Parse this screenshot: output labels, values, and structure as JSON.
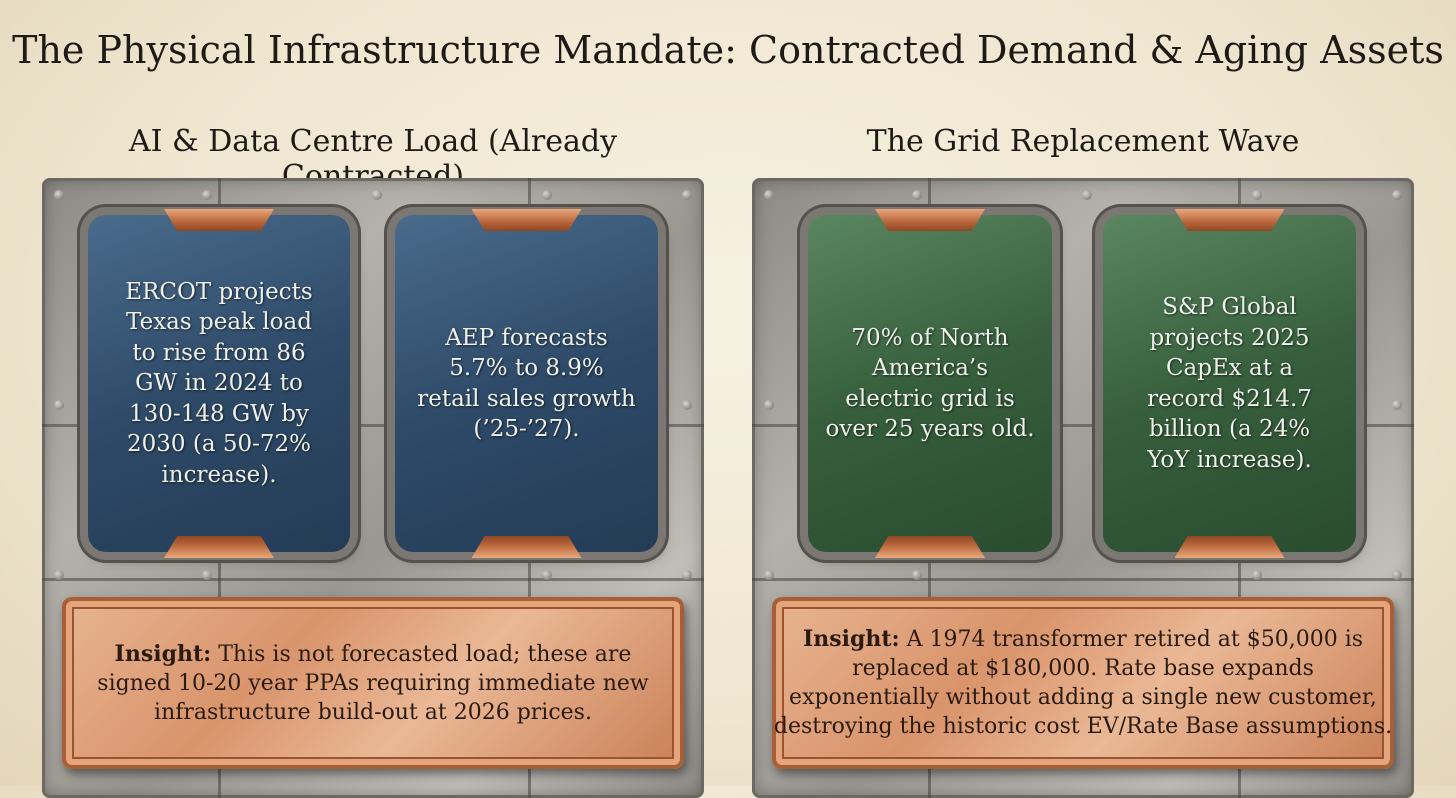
{
  "title": "The Physical Infrastructure Mandate: Contracted Demand & Aging Assets",
  "panels": [
    {
      "heading": "AI & Data Centre Load (Already Contracted)",
      "cards": [
        {
          "lines": [
            "ERCOT projects",
            "Texas peak load",
            "to rise from 86",
            "GW in 2024 to",
            "130-148 GW by",
            "2030 (a 50-72%",
            "increase)."
          ]
        },
        {
          "lines": [
            "AEP forecasts",
            "5.7% to 8.9%",
            "retail sales growth",
            "(’25-’27)."
          ]
        }
      ],
      "insight": {
        "label": "Insight:",
        "lines": [
          "This is not forecasted load; these are",
          "signed 10-20 year PPAs requiring immediate new",
          "infrastructure build-out at 2026 prices."
        ]
      }
    },
    {
      "heading": "The Grid Replacement Wave",
      "cards": [
        {
          "lines": [
            "70% of North",
            "America’s",
            "electric grid is",
            "over 25 years old."
          ]
        },
        {
          "lines": [
            "S&P Global",
            "projects 2025",
            "CapEx at a",
            "record $214.7",
            "billion (a 24%",
            "YoY increase)."
          ]
        }
      ],
      "insight": {
        "label": "Insight:",
        "lines": [
          "A 1974 transformer retired at $50,000 is",
          "replaced at $180,000. Rate base expands",
          "exponentially without adding a single new customer,",
          "destroying the historic cost EV/Rate Base assumptions."
        ]
      }
    }
  ]
}
